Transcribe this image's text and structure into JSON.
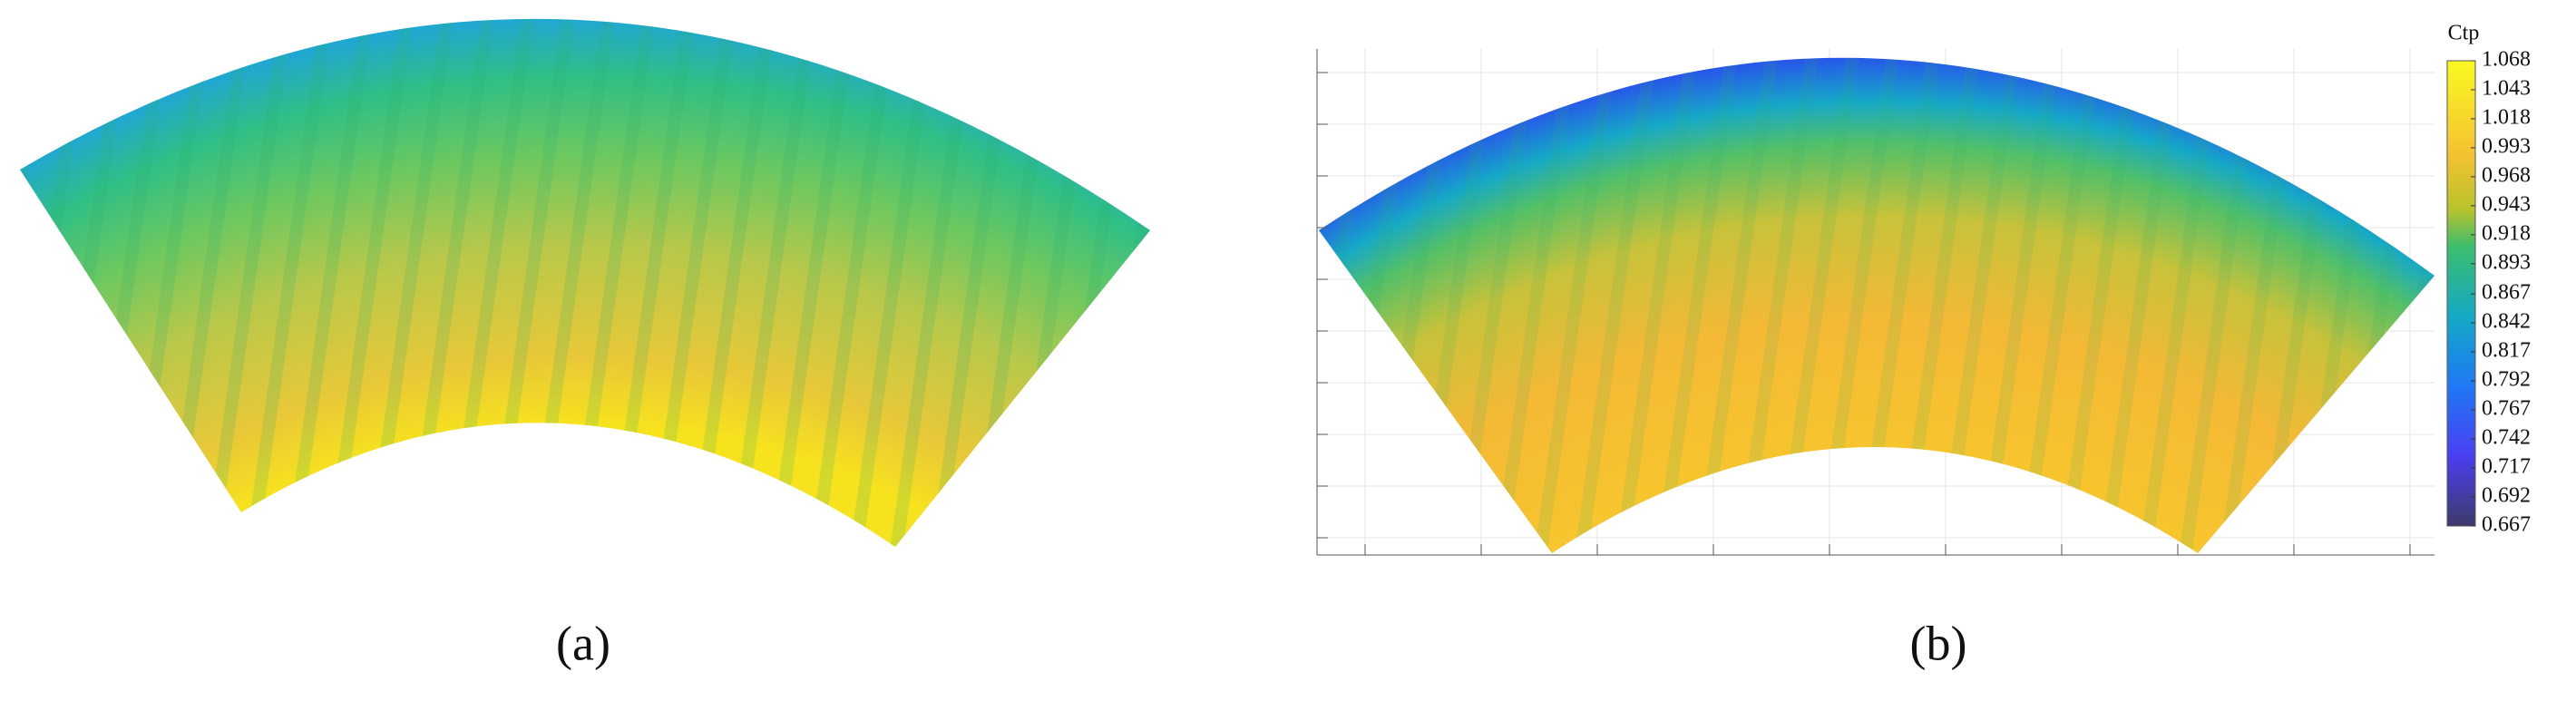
{
  "panels": [
    {
      "label": "(a)"
    },
    {
      "label": "(b)"
    }
  ],
  "colorbar": {
    "title": "Ctp",
    "ticks": [
      1.068,
      1.043,
      1.018,
      0.993,
      0.968,
      0.943,
      0.918,
      0.893,
      0.867,
      0.842,
      0.817,
      0.792,
      0.767,
      0.742,
      0.717,
      0.692,
      0.667
    ]
  }
}
